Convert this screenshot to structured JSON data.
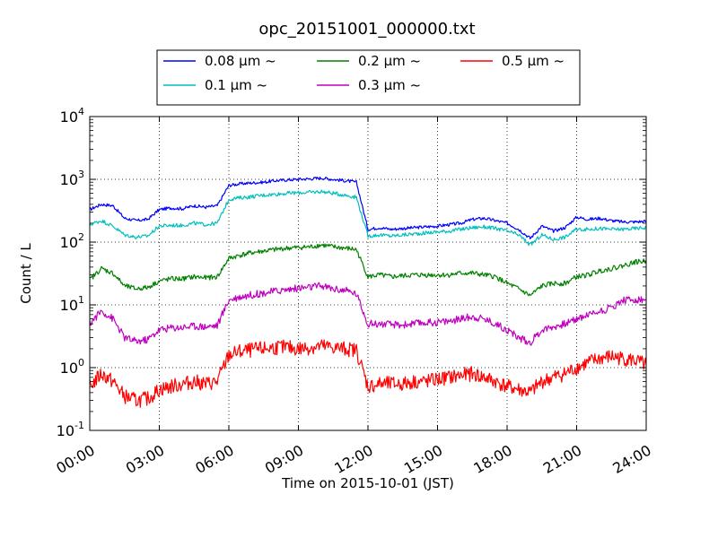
{
  "chart_data": {
    "type": "line",
    "title": "opc_20151001_000000.txt",
    "xlabel": "Time on 2015-10-01 (JST)",
    "ylabel": "Count / L",
    "y_scale": "log",
    "ylim": [
      0.1,
      10000
    ],
    "xlim": [
      "00:00",
      "24:00"
    ],
    "grid": true,
    "legend_position": "top-center",
    "x_tick_labels": [
      "00:00",
      "03:00",
      "06:00",
      "09:00",
      "12:00",
      "15:00",
      "18:00",
      "21:00",
      "24:00"
    ],
    "y_tick_labels": [
      {
        "base": "10",
        "exp": "-1"
      },
      {
        "base": "10",
        "exp": "0"
      },
      {
        "base": "10",
        "exp": "1"
      },
      {
        "base": "10",
        "exp": "2"
      },
      {
        "base": "10",
        "exp": "3"
      },
      {
        "base": "10",
        "exp": "4"
      }
    ],
    "x": [
      "00:00",
      "00:30",
      "01:00",
      "01:30",
      "02:00",
      "02:30",
      "03:00",
      "03:30",
      "04:00",
      "04:30",
      "05:00",
      "05:30",
      "06:00",
      "06:30",
      "07:00",
      "07:30",
      "08:00",
      "08:30",
      "09:00",
      "09:30",
      "10:00",
      "10:30",
      "11:00",
      "11:30",
      "12:00",
      "12:30",
      "13:00",
      "13:30",
      "14:00",
      "14:30",
      "15:00",
      "15:30",
      "16:00",
      "16:30",
      "17:00",
      "17:30",
      "18:00",
      "18:30",
      "19:00",
      "19:30",
      "20:00",
      "20:30",
      "21:00",
      "21:30",
      "22:00",
      "22:30",
      "23:00",
      "23:30",
      "24:00"
    ],
    "series": [
      {
        "name": "0.08 μm ~",
        "color": "#0000ff",
        "values": [
          330,
          400,
          380,
          240,
          220,
          230,
          330,
          350,
          340,
          380,
          360,
          380,
          800,
          850,
          880,
          900,
          950,
          980,
          1000,
          1020,
          1050,
          1000,
          950,
          900,
          160,
          170,
          160,
          165,
          170,
          175,
          180,
          190,
          200,
          230,
          240,
          220,
          200,
          160,
          115,
          180,
          150,
          170,
          250,
          230,
          240,
          220,
          210,
          210,
          215
        ]
      },
      {
        "name": "0.1 μm ~",
        "color": "#00bfbf",
        "values": [
          190,
          220,
          180,
          130,
          120,
          125,
          180,
          185,
          185,
          200,
          190,
          200,
          480,
          510,
          530,
          560,
          580,
          600,
          610,
          620,
          640,
          600,
          560,
          520,
          125,
          130,
          125,
          130,
          135,
          140,
          145,
          150,
          160,
          170,
          175,
          165,
          150,
          130,
          90,
          130,
          110,
          120,
          160,
          160,
          165,
          160,
          160,
          165,
          170
        ]
      },
      {
        "name": "0.2 μm ~",
        "color": "#008000",
        "values": [
          25,
          38,
          32,
          20,
          18,
          19,
          24,
          26,
          26,
          28,
          27,
          28,
          55,
          62,
          68,
          72,
          76,
          80,
          82,
          84,
          90,
          84,
          80,
          76,
          28,
          30,
          28,
          29,
          30,
          30,
          30,
          30,
          32,
          32,
          30,
          28,
          22,
          18,
          14,
          20,
          22,
          22,
          28,
          30,
          35,
          38,
          42,
          48,
          50
        ]
      },
      {
        "name": "0.3 μm ~",
        "color": "#bf00bf",
        "values": [
          5,
          8,
          6,
          3,
          2.6,
          2.8,
          4,
          4.3,
          4.4,
          4.6,
          4.5,
          4.7,
          12,
          13.5,
          14.5,
          15.5,
          16.5,
          17.5,
          18.5,
          19,
          20,
          18,
          17,
          15,
          5,
          5,
          4.8,
          4.8,
          5,
          5.2,
          5.3,
          5.5,
          6,
          6.5,
          6,
          5,
          4,
          3,
          2.5,
          4,
          4.5,
          5,
          6,
          7,
          8,
          9,
          12,
          12,
          12
        ]
      },
      {
        "name": "0.5 μm ~",
        "color": "#ff0000",
        "values": [
          0.5,
          0.8,
          0.6,
          0.35,
          0.3,
          0.32,
          0.45,
          0.5,
          0.55,
          0.6,
          0.55,
          0.6,
          1.6,
          1.8,
          1.9,
          2,
          2.1,
          2.1,
          2,
          2.1,
          2.2,
          2.1,
          2,
          1.9,
          0.5,
          0.55,
          0.55,
          0.55,
          0.6,
          0.6,
          0.65,
          0.7,
          0.75,
          0.8,
          0.7,
          0.6,
          0.5,
          0.45,
          0.4,
          0.6,
          0.7,
          0.8,
          1,
          1.2,
          1.4,
          1.5,
          1.4,
          1.3,
          1.1
        ]
      }
    ]
  }
}
